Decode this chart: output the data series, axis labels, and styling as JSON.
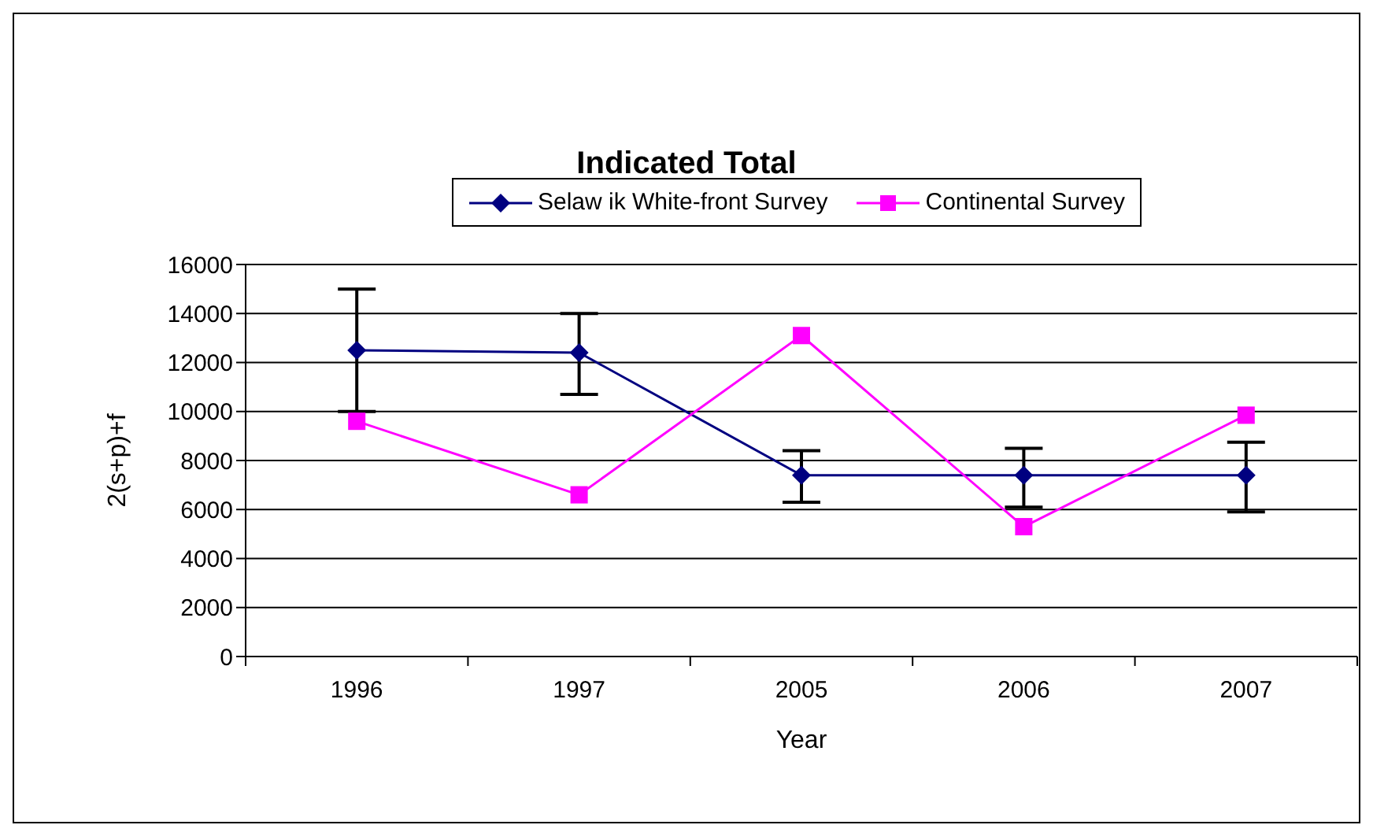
{
  "chart_data": {
    "type": "line",
    "title": "Indicated Total",
    "xlabel": "Year",
    "ylabel": "2(s+p)+f",
    "categories": [
      "1996",
      "1997",
      "2005",
      "2006",
      "2007"
    ],
    "series": [
      {
        "name": "Selaw ik White-front Survey",
        "color": "#000080",
        "marker": "diamond",
        "values": [
          12500,
          12400,
          7400,
          7400,
          7400
        ],
        "errors": [
          [
            10000,
            15000
          ],
          [
            10700,
            14000
          ],
          [
            6300,
            8400
          ],
          [
            6100,
            8500
          ],
          [
            5900,
            8750
          ]
        ]
      },
      {
        "name": "Continental Survey",
        "color": "#ff00ff",
        "marker": "square",
        "values": [
          9600,
          6600,
          13100,
          5300,
          9850
        ]
      }
    ],
    "ylim": [
      0,
      16000
    ],
    "yticks": [
      0,
      2000,
      4000,
      6000,
      8000,
      10000,
      12000,
      14000,
      16000
    ],
    "grid": "y",
    "legend": "top"
  }
}
